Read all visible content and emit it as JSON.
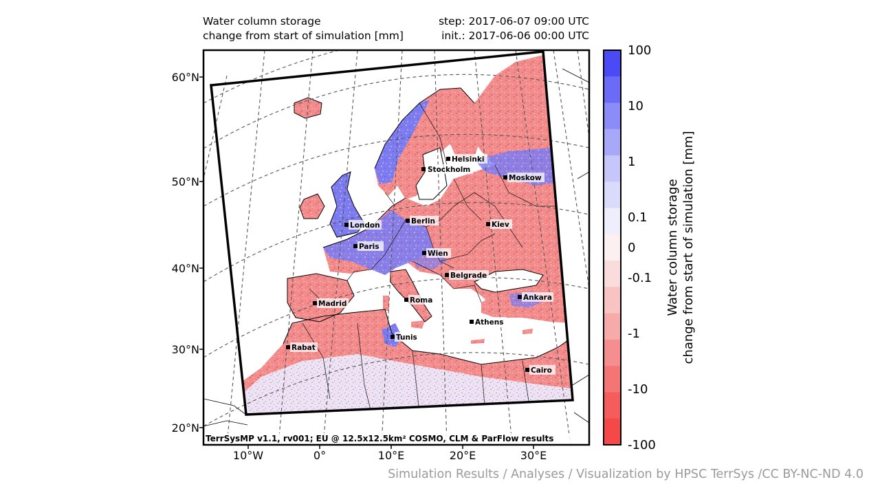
{
  "header": {
    "title_line1": "Water column storage",
    "title_line2": "change from start of simulation [mm]",
    "step_label": "step: 2017-06-07 09:00 UTC",
    "init_label": "init.: 2017-06-06 00:00 UTC"
  },
  "map": {
    "footer": "TerrSysMP v1.1, rv001; EU @ 12.5x12.5km² COSMO, CLM & ParFlow results",
    "lat_labels": [
      "60°N",
      "50°N",
      "40°N",
      "30°N",
      "20°N"
    ],
    "lon_labels": [
      "10°W",
      "0°",
      "10°E",
      "20°E",
      "30°E"
    ],
    "cities": [
      "Helsinki",
      "Stockholm",
      "Moskow",
      "London",
      "Berlin",
      "Kiev",
      "Paris",
      "Wien",
      "Belgrade",
      "Madrid",
      "Roma",
      "Ankara",
      "Athens",
      "Tunis",
      "Rabat",
      "Cairo"
    ],
    "colors": {
      "land_drying": "#f38b8b",
      "land_wetting": "#7e7ef2",
      "sahara": "#ecdff2",
      "water": "#ffffff",
      "border": "#000000"
    }
  },
  "colorbar": {
    "label_line1": "Water column storage",
    "label_line2": "change from start of simulation [mm]",
    "tick_labels": [
      "100",
      "10",
      "1",
      "0.1",
      "0",
      "-0.1",
      "-1",
      "-10",
      "-100"
    ],
    "band_colors": [
      "#4b4bf6",
      "#6b6bf7",
      "#8c8cf8",
      "#a8a8f9",
      "#c6c6fa",
      "#dadafb",
      "#eeeefd",
      "#fdf0f0",
      "#fbdcdc",
      "#f9c3c3",
      "#f7aaaa",
      "#f58f8f",
      "#f57575",
      "#f55c5c",
      "#f54848"
    ]
  },
  "credit": "Simulation Results / Analyses / Visualization by HPSC TerrSys /CC BY-NC-ND 4.0"
}
